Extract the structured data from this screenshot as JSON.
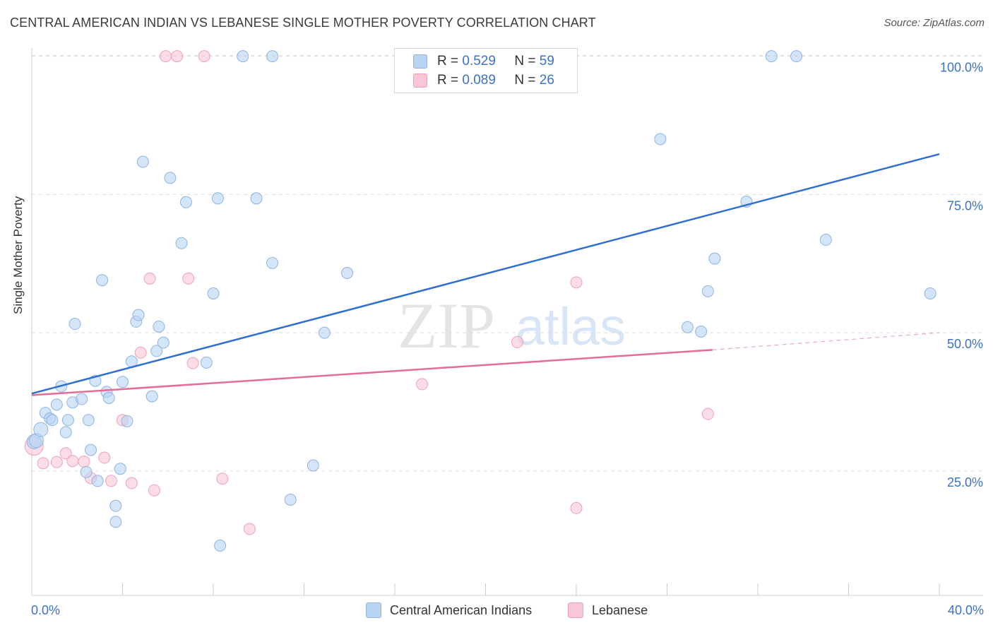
{
  "title": "CENTRAL AMERICAN INDIAN VS LEBANESE SINGLE MOTHER POVERTY CORRELATION CHART",
  "source": "Source: ZipAtlas.com",
  "watermark": {
    "zip": "ZIP",
    "atlas": "atlas"
  },
  "legend": {
    "r_label": "R =",
    "n_label": "N =",
    "rows": [
      {
        "r": "0.529",
        "n": "59"
      },
      {
        "r": "0.089",
        "n": "26"
      }
    ]
  },
  "colors": {
    "blue_fill": "#b9d3f3",
    "blue_stroke": "#8fb3e3",
    "blue_line": "#2f6fcf",
    "pink_fill": "#f8c6d6",
    "pink_stroke": "#eea1ba",
    "pink_line": "#e46d97",
    "tick_label": "#3b72c4",
    "grid": "#dddddd"
  },
  "chart_data": {
    "type": "scatter",
    "title": "CENTRAL AMERICAN INDIAN VS LEBANESE SINGLE MOTHER POVERTY CORRELATION CHART",
    "xlabel": "",
    "ylabel": "Single Mother Poverty",
    "xlim": [
      0,
      40
    ],
    "ylim": [
      2.5,
      102.5
    ],
    "x_tick_labels": [
      "0.0%",
      "40.0%"
    ],
    "y_ticks": [
      25,
      50,
      75,
      100
    ],
    "y_tick_labels": [
      "25.0%",
      "50.0%",
      "75.0%",
      "100.0%"
    ],
    "grid": true,
    "legend_position": "bottom",
    "series": [
      {
        "name": "Central American Indians",
        "points": [
          [
            0.1,
            30.3
          ],
          [
            0.2,
            30.5
          ],
          [
            0.4,
            32.5
          ],
          [
            0.6,
            35.5
          ],
          [
            0.8,
            34.5
          ],
          [
            0.9,
            34.2
          ],
          [
            1.1,
            37.0
          ],
          [
            1.3,
            40.3
          ],
          [
            1.5,
            32.0
          ],
          [
            1.6,
            34.2
          ],
          [
            1.8,
            37.4
          ],
          [
            1.9,
            51.6
          ],
          [
            2.2,
            38.0
          ],
          [
            2.4,
            24.8
          ],
          [
            2.5,
            34.2
          ],
          [
            2.6,
            28.8
          ],
          [
            2.8,
            41.3
          ],
          [
            2.9,
            23.2
          ],
          [
            3.1,
            59.5
          ],
          [
            3.3,
            39.3
          ],
          [
            3.4,
            38.2
          ],
          [
            3.7,
            18.7
          ],
          [
            3.7,
            15.8
          ],
          [
            3.9,
            25.4
          ],
          [
            4.0,
            41.1
          ],
          [
            4.2,
            34.0
          ],
          [
            4.4,
            44.8
          ],
          [
            4.6,
            52.0
          ],
          [
            4.7,
            53.2
          ],
          [
            4.9,
            80.9
          ],
          [
            5.3,
            38.5
          ],
          [
            5.5,
            46.7
          ],
          [
            5.6,
            51.1
          ],
          [
            5.8,
            48.2
          ],
          [
            6.1,
            78.0
          ],
          [
            6.6,
            66.2
          ],
          [
            6.8,
            73.6
          ],
          [
            7.7,
            44.6
          ],
          [
            8.0,
            57.1
          ],
          [
            8.2,
            74.3
          ],
          [
            8.3,
            11.5
          ],
          [
            9.3,
            100.0
          ],
          [
            9.9,
            74.3
          ],
          [
            10.6,
            62.6
          ],
          [
            10.6,
            100.0
          ],
          [
            11.4,
            19.8
          ],
          [
            12.4,
            26.0
          ],
          [
            12.9,
            50.0
          ],
          [
            13.9,
            60.8
          ],
          [
            27.7,
            85.0
          ],
          [
            28.9,
            51.0
          ],
          [
            29.5,
            50.2
          ],
          [
            29.8,
            57.5
          ],
          [
            30.1,
            63.4
          ],
          [
            31.5,
            73.7
          ],
          [
            32.6,
            100.0
          ],
          [
            33.7,
            100.0
          ],
          [
            35.0,
            66.8
          ],
          [
            39.6,
            57.1
          ]
        ],
        "trend": {
          "x0": 0,
          "y0": 39.0,
          "x1": 40,
          "y1": 82.3
        }
      },
      {
        "name": "Lebanese",
        "points": [
          [
            0.1,
            29.5
          ],
          [
            0.5,
            26.4
          ],
          [
            1.1,
            26.6
          ],
          [
            1.5,
            28.2
          ],
          [
            1.8,
            26.8
          ],
          [
            2.3,
            26.7
          ],
          [
            2.6,
            23.7
          ],
          [
            3.2,
            27.4
          ],
          [
            3.5,
            23.2
          ],
          [
            4.0,
            34.2
          ],
          [
            4.4,
            22.8
          ],
          [
            4.8,
            46.4
          ],
          [
            5.2,
            59.8
          ],
          [
            5.4,
            21.5
          ],
          [
            5.9,
            100.0
          ],
          [
            6.4,
            100.0
          ],
          [
            6.9,
            59.8
          ],
          [
            7.1,
            44.5
          ],
          [
            7.6,
            100.0
          ],
          [
            8.4,
            23.6
          ],
          [
            9.6,
            14.5
          ],
          [
            17.2,
            40.7
          ],
          [
            21.4,
            48.3
          ],
          [
            24.0,
            59.1
          ],
          [
            24.0,
            18.3
          ],
          [
            29.8,
            35.3
          ]
        ],
        "trend": {
          "x0": 0,
          "y0": 38.7,
          "x1": 30,
          "y1": 46.9
        },
        "trend_extension": {
          "x0": 30,
          "y0": 46.9,
          "x1": 40,
          "y1": 50.0
        }
      }
    ]
  }
}
